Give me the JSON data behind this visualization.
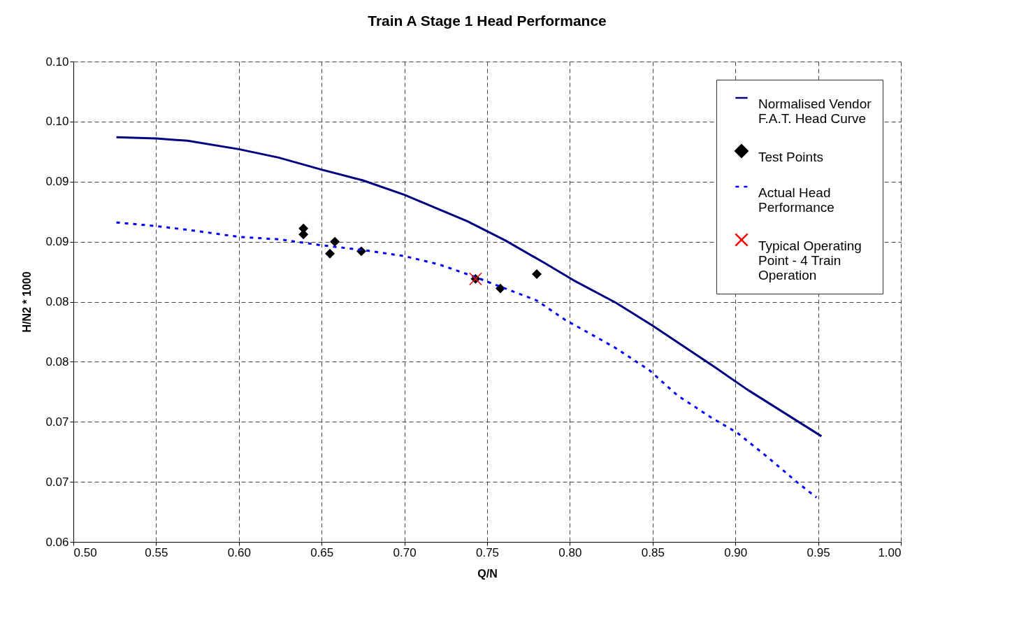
{
  "chart_data": {
    "type": "line",
    "title": "Train A Stage 1 Head Performance",
    "xlabel": "Q/N",
    "ylabel": "H/N2 * 1000",
    "xlim": [
      0.5,
      1.0
    ],
    "xticks": [
      {
        "value": 0.5,
        "label": "0.50"
      },
      {
        "value": 0.55,
        "label": "0.55"
      },
      {
        "value": 0.6,
        "label": "0.60"
      },
      {
        "value": 0.65,
        "label": "0.65"
      },
      {
        "value": 0.7,
        "label": "0.70"
      },
      {
        "value": 0.75,
        "label": "0.75"
      },
      {
        "value": 0.8,
        "label": "0.80"
      },
      {
        "value": 0.85,
        "label": "0.85"
      },
      {
        "value": 0.9,
        "label": "0.90"
      },
      {
        "value": 0.95,
        "label": "0.95"
      },
      {
        "value": 1.0,
        "label": "1.00"
      }
    ],
    "ylim": [
      0.06,
      0.1
    ],
    "yticks": [
      {
        "value": 0.06,
        "label": "0.06"
      },
      {
        "value": 0.065,
        "label": "0.07"
      },
      {
        "value": 0.07,
        "label": "0.07"
      },
      {
        "value": 0.075,
        "label": "0.08"
      },
      {
        "value": 0.08,
        "label": "0.08"
      },
      {
        "value": 0.085,
        "label": "0.09"
      },
      {
        "value": 0.09,
        "label": "0.09"
      },
      {
        "value": 0.095,
        "label": "0.10"
      },
      {
        "value": 0.1,
        "label": "0.10"
      }
    ],
    "grid": true,
    "legend": "top right",
    "series": [
      {
        "name": "Normalised Vendor F.A.T. Head Curve",
        "color": "#000080",
        "line_style": "solid",
        "x": [
          0.526,
          0.55,
          0.569,
          0.6,
          0.624,
          0.65,
          0.675,
          0.7,
          0.738,
          0.761,
          0.785,
          0.802,
          0.828,
          0.85,
          0.886,
          0.907,
          0.952
        ],
        "values": [
          0.0937,
          0.0936,
          0.0934,
          0.0927,
          0.092,
          0.091,
          0.0901,
          0.0889,
          0.0867,
          0.0851,
          0.0832,
          0.0818,
          0.0799,
          0.078,
          0.0747,
          0.0727,
          0.0688
        ]
      },
      {
        "name": "Test Points",
        "type": "scatter",
        "color": "#000000",
        "marker": "diamond",
        "x": [
          0.639,
          0.639,
          0.658,
          0.655,
          0.674,
          0.743,
          0.758,
          0.78
        ],
        "values": [
          0.0861,
          0.0856,
          0.085,
          0.084,
          0.0842,
          0.0819,
          0.0811,
          0.0823
        ]
      },
      {
        "name": "Actual Head Performance",
        "color": "#0000ff",
        "line_style": "dotted",
        "x": [
          0.526,
          0.55,
          0.574,
          0.6,
          0.624,
          0.65,
          0.675,
          0.7,
          0.721,
          0.742,
          0.761,
          0.78,
          0.797,
          0.814,
          0.827,
          0.848,
          0.865,
          0.886,
          0.901,
          0.92,
          0.937,
          0.949
        ],
        "values": [
          0.0866,
          0.0863,
          0.0859,
          0.0854,
          0.0852,
          0.0847,
          0.0843,
          0.0838,
          0.0831,
          0.0821,
          0.0811,
          0.0801,
          0.0785,
          0.0772,
          0.0762,
          0.0743,
          0.0722,
          0.0703,
          0.0691,
          0.067,
          0.065,
          0.0637
        ]
      },
      {
        "name": "Typical Operating Point - 4 Train Operation",
        "type": "scatter",
        "color": "#ff0000",
        "marker": "cross",
        "x": [
          0.743
        ],
        "values": [
          0.0819
        ]
      }
    ]
  }
}
